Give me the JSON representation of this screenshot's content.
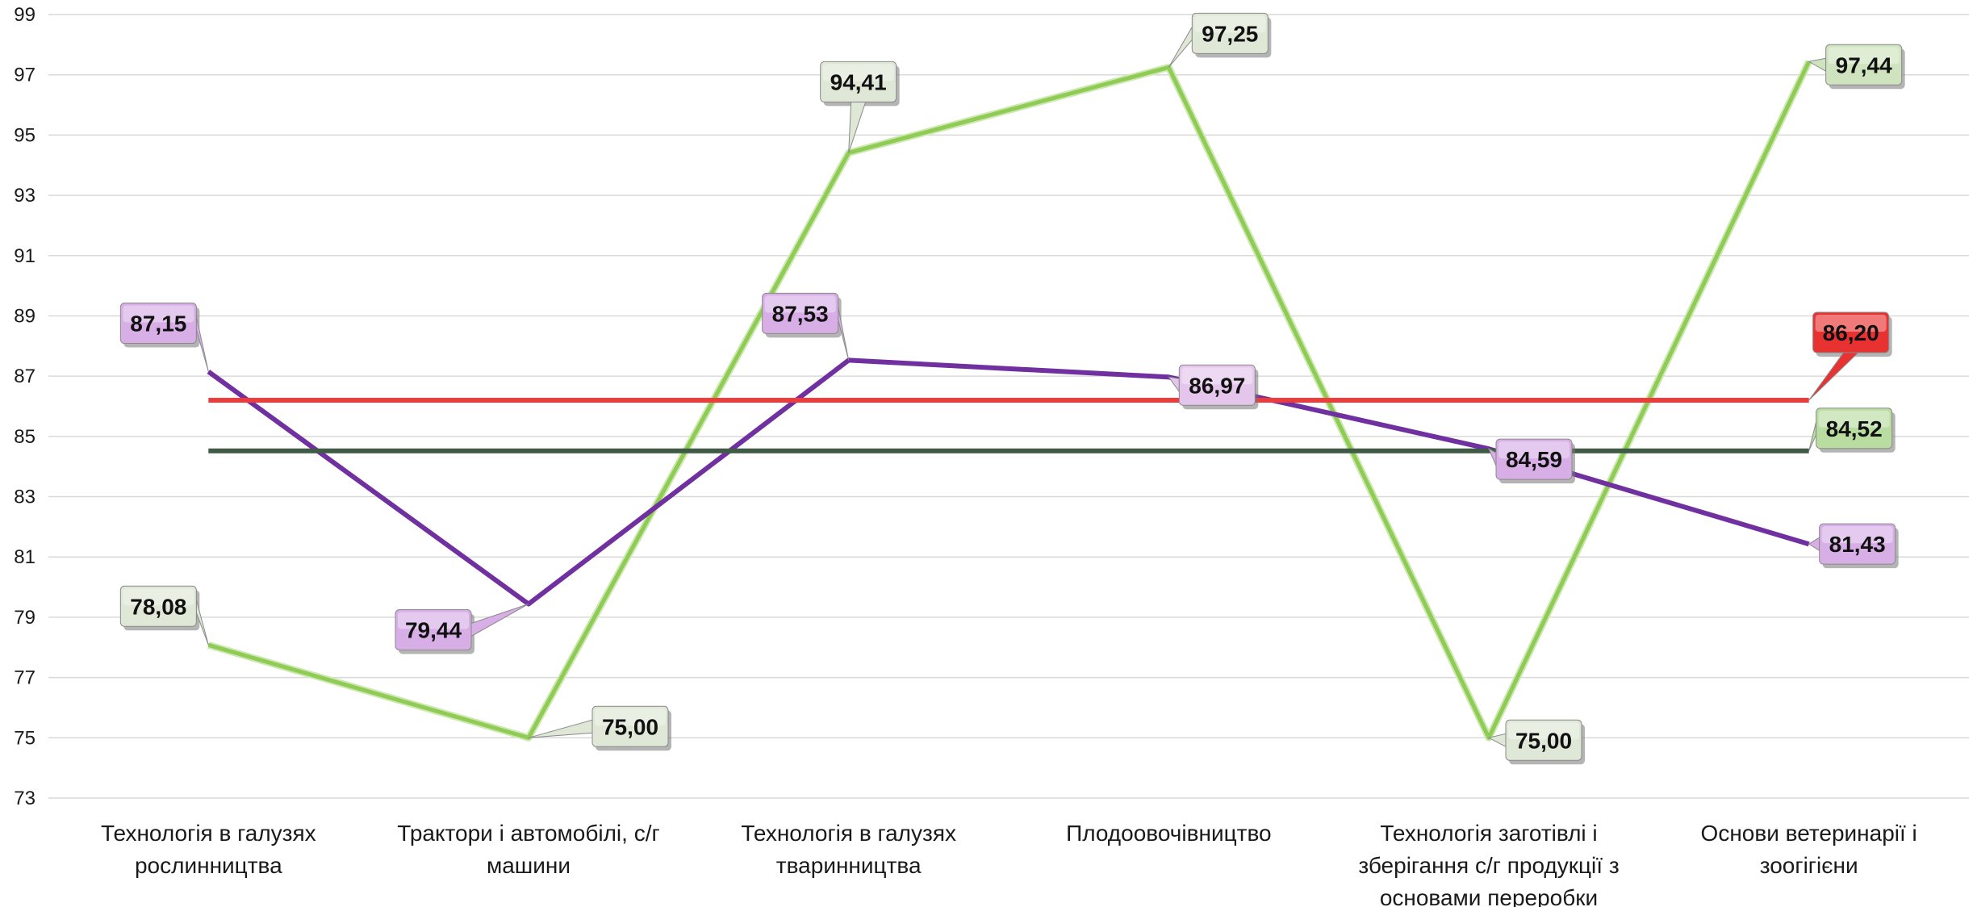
{
  "chart_data": {
    "type": "line",
    "title": "",
    "xlabel": "",
    "ylabel": "",
    "ylim": [
      73,
      99
    ],
    "yticks": [
      73,
      75,
      77,
      79,
      81,
      83,
      85,
      87,
      89,
      91,
      93,
      95,
      97,
      99
    ],
    "grid": "horizontal",
    "legend": "none",
    "categories": [
      [
        "Технологія в галузях",
        "рослинництва"
      ],
      [
        "Трактори і автомобілі, с/г",
        "машини"
      ],
      [
        "Технологія в галузях",
        "тваринництва"
      ],
      [
        "Плодоовочівництво"
      ],
      [
        "Технологія заготівлі і",
        "зберігання с/г продукції з",
        "основами переробки"
      ],
      [
        "Основи ветеринарії і",
        "зоогігієни"
      ]
    ],
    "series": [
      {
        "color": "#8fcc56",
        "values": [
          78.08,
          75.0,
          94.41,
          97.25,
          75.0,
          97.44
        ],
        "labels": [
          "78,08",
          "75,00",
          "94,41",
          "97,25",
          "75,00",
          "97,44"
        ],
        "label_colors": [
          "#dfe7d6",
          "#dfe7d6",
          "#dfe7d6",
          "#dfe7d6",
          "#dfe7d6",
          "#cfe3bf"
        ]
      },
      {
        "color": "#7030a0",
        "values": [
          87.15,
          79.44,
          87.53,
          86.97,
          84.59,
          81.43
        ],
        "labels": [
          "87,15",
          "79,44",
          "87,53",
          "86,97",
          "84,59",
          "81,43"
        ],
        "label_colors": [
          "#d8aee6",
          "#d8aee6",
          "#d8aee6",
          "#e4c6ec",
          "#d8aee6",
          "#d8aee6"
        ]
      },
      {
        "color": "#ee3b3b",
        "values": [
          86.2,
          86.2,
          86.2,
          86.2,
          86.2,
          86.2
        ],
        "labels": [
          "",
          "",
          "",
          "",
          "",
          "86,20"
        ],
        "label_colors": [
          "",
          "",
          "",
          "",
          "",
          "#e83232"
        ]
      },
      {
        "color": "#3f5b45",
        "values": [
          84.52,
          84.52,
          84.52,
          84.52,
          84.52,
          84.52
        ],
        "labels": [
          "",
          "",
          "",
          "",
          "",
          "84,52"
        ],
        "label_colors": [
          "",
          "",
          "",
          "",
          "",
          "#b9dca1"
        ]
      }
    ]
  }
}
